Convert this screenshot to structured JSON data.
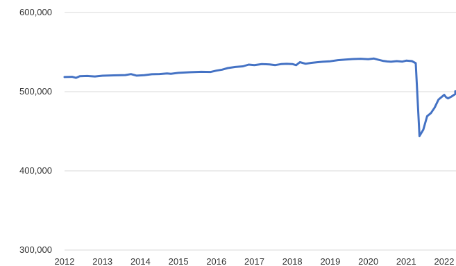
{
  "chart_data": {
    "type": "line",
    "title": "",
    "xlabel": "",
    "ylabel": "",
    "xlim": [
      2012,
      2022.4
    ],
    "ylim": [
      300000,
      600000
    ],
    "grid": true,
    "legend": "none",
    "y_ticks": [
      {
        "value": 600000,
        "label": "600,000"
      },
      {
        "value": 500000,
        "label": "500,000"
      },
      {
        "value": 400000,
        "label": "400,000"
      },
      {
        "value": 300000,
        "label": "300,000"
      }
    ],
    "x_ticks": [
      {
        "value": 2012,
        "label": "2012"
      },
      {
        "value": 2013,
        "label": "2013"
      },
      {
        "value": 2014,
        "label": "2014"
      },
      {
        "value": 2015,
        "label": "2015"
      },
      {
        "value": 2016,
        "label": "2016"
      },
      {
        "value": 2017,
        "label": "2017"
      },
      {
        "value": 2018,
        "label": "2018"
      },
      {
        "value": 2019,
        "label": "2019"
      },
      {
        "value": 2020,
        "label": "2020"
      },
      {
        "value": 2021,
        "label": "2021"
      },
      {
        "value": 2022,
        "label": "2022"
      }
    ],
    "series": [
      {
        "color": "#4472c4",
        "points": [
          [
            2012.0,
            518500
          ],
          [
            2012.2,
            518800
          ],
          [
            2012.3,
            517500
          ],
          [
            2012.4,
            519500
          ],
          [
            2012.6,
            519800
          ],
          [
            2012.8,
            519200
          ],
          [
            2013.0,
            520200
          ],
          [
            2013.3,
            520600
          ],
          [
            2013.6,
            521000
          ],
          [
            2013.75,
            522200
          ],
          [
            2013.9,
            520300
          ],
          [
            2014.1,
            520800
          ],
          [
            2014.3,
            522000
          ],
          [
            2014.5,
            522300
          ],
          [
            2014.7,
            523000
          ],
          [
            2014.8,
            522500
          ],
          [
            2015.0,
            523800
          ],
          [
            2015.3,
            524600
          ],
          [
            2015.6,
            525100
          ],
          [
            2015.85,
            524900
          ],
          [
            2016.0,
            526600
          ],
          [
            2016.15,
            527800
          ],
          [
            2016.3,
            529800
          ],
          [
            2016.5,
            531200
          ],
          [
            2016.7,
            532000
          ],
          [
            2016.85,
            534200
          ],
          [
            2017.0,
            533600
          ],
          [
            2017.2,
            534800
          ],
          [
            2017.4,
            534500
          ],
          [
            2017.55,
            533600
          ],
          [
            2017.7,
            534800
          ],
          [
            2017.85,
            535200
          ],
          [
            2018.0,
            534900
          ],
          [
            2018.1,
            533500
          ],
          [
            2018.2,
            537300
          ],
          [
            2018.35,
            535300
          ],
          [
            2018.5,
            536400
          ],
          [
            2018.65,
            537200
          ],
          [
            2018.8,
            537800
          ],
          [
            2019.0,
            538400
          ],
          [
            2019.2,
            539800
          ],
          [
            2019.4,
            540600
          ],
          [
            2019.6,
            541200
          ],
          [
            2019.8,
            541600
          ],
          [
            2020.0,
            541000
          ],
          [
            2020.15,
            541800
          ],
          [
            2020.25,
            540500
          ],
          [
            2020.4,
            538800
          ],
          [
            2020.5,
            538200
          ],
          [
            2020.6,
            537800
          ],
          [
            2020.75,
            538600
          ],
          [
            2020.9,
            538000
          ],
          [
            2021.0,
            539200
          ],
          [
            2021.15,
            538600
          ],
          [
            2021.25,
            536000
          ],
          [
            2021.35,
            444000
          ],
          [
            2021.45,
            452000
          ],
          [
            2021.55,
            469000
          ],
          [
            2021.65,
            473000
          ],
          [
            2021.75,
            480000
          ],
          [
            2021.85,
            490000
          ],
          [
            2021.95,
            494000
          ],
          [
            2022.0,
            496000
          ],
          [
            2022.05,
            493000
          ],
          [
            2022.1,
            491500
          ],
          [
            2022.2,
            494000
          ],
          [
            2022.3,
            497000
          ],
          [
            2022.4,
            500500
          ]
        ]
      }
    ]
  }
}
